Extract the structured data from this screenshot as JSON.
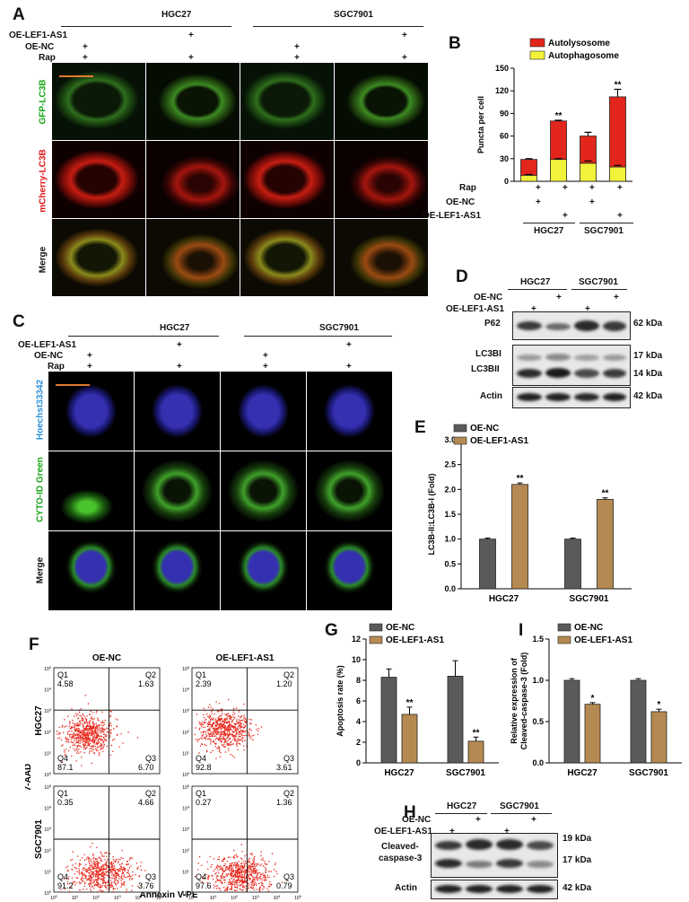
{
  "panels": {
    "A": "A",
    "B": "B",
    "C": "C",
    "D": "D",
    "E": "E",
    "F": "F",
    "G": "G",
    "H": "H",
    "I": "I"
  },
  "common": {
    "hgc27": "HGC27",
    "sgc7901": "SGC7901",
    "oe_lef1": "OE-LEF1-AS1",
    "oe_nc": "OE-NC",
    "rap": "Rap",
    "plus": "+"
  },
  "panelA": {
    "rows": [
      "GFP-LC3B",
      "mCherry-LC3B",
      "Merge"
    ]
  },
  "panelC": {
    "rows": [
      "Hoechst33342",
      "CYTO-ID Green",
      "Merge"
    ]
  },
  "panelD": {
    "proteins": [
      "P62",
      "LC3BI",
      "LC3BII",
      "Actin"
    ],
    "kda": [
      "62 kDa",
      "17 kDa",
      "14 kDa",
      "42 kDa"
    ]
  },
  "panelF": {
    "col_titles": [
      "OE-NC",
      "OE-LEF1-AS1"
    ],
    "row_labels": [
      "HGC27",
      "SGC7901"
    ],
    "xlabel": "Annexin V-PE",
    "ylabel": "7-AAD",
    "quadrant_names": [
      "Q1",
      "Q2",
      "Q3",
      "Q4"
    ],
    "plots": [
      {
        "q1": "4.58",
        "q2": "1.63",
        "q3": "6.70",
        "q4": "87.1"
      },
      {
        "q1": "2.39",
        "q2": "1.20",
        "q3": "3.61",
        "q4": "92.8"
      },
      {
        "q1": "0.35",
        "q2": "4.66",
        "q3": "3.76",
        "q4": "91.2"
      },
      {
        "q1": "0.27",
        "q2": "1.36",
        "q3": "0.79",
        "q4": "97.6"
      }
    ],
    "tick_exps": [
      "0",
      "1",
      "2",
      "3",
      "4",
      "5"
    ]
  },
  "panelH": {
    "proteins": [
      "Cleaved-",
      "caspase-3",
      "Actin"
    ],
    "kda": [
      "19 kDa",
      "17 kDa",
      "42 kDa"
    ]
  },
  "chart_data": [
    {
      "panel": "B",
      "type": "bar",
      "stacked": true,
      "categories": [
        "HGC27 OE-NC",
        "HGC27 OE-LEF1-AS1",
        "SGC7901 OE-NC",
        "SGC7901 OE-LEF1-AS1"
      ],
      "series": [
        {
          "name": "Autolysosome",
          "color": "#e2261c",
          "values": [
            21,
            51,
            36,
            93
          ],
          "errors": [
            1,
            1,
            5,
            10
          ]
        },
        {
          "name": "Autophagosome",
          "color": "#f2f23a",
          "values": [
            8,
            29,
            24,
            19
          ],
          "errors": [
            1,
            1,
            3,
            2
          ]
        }
      ],
      "ylabel": "Puncta per cell",
      "ylim": [
        0,
        150
      ],
      "yticks": [
        0,
        30,
        60,
        90,
        120,
        150
      ],
      "significance": [
        "",
        "**",
        "",
        "**"
      ],
      "legend": "top"
    },
    {
      "panel": "E",
      "type": "bar",
      "categories": [
        "HGC27",
        "SGC7901"
      ],
      "series": [
        {
          "name": "OE-NC",
          "color": "#5a5a5a",
          "values": [
            1.0,
            1.0
          ],
          "errors": [
            0.02,
            0.02
          ]
        },
        {
          "name": "OE-LEF1-AS1",
          "color": "#b58a52",
          "values": [
            2.1,
            1.8
          ],
          "errors": [
            0.03,
            0.03
          ]
        }
      ],
      "ylabel": "LC3B-II:LC3B-I (Fold)",
      "ylim": [
        0,
        3.0
      ],
      "yticks": [
        "0.0",
        "0.5",
        "1.0",
        "1.5",
        "2.0",
        "2.5",
        "3.0"
      ],
      "significance": [
        [
          "",
          "**"
        ],
        [
          "",
          "**"
        ]
      ],
      "legend": "top-left"
    },
    {
      "panel": "G",
      "type": "bar",
      "categories": [
        "HGC27",
        "SGC7901"
      ],
      "series": [
        {
          "name": "OE-NC",
          "color": "#5a5a5a",
          "values": [
            8.3,
            8.4
          ],
          "errors": [
            0.8,
            1.5
          ]
        },
        {
          "name": "OE-LEF1-AS1",
          "color": "#b58a52",
          "values": [
            4.7,
            2.1
          ],
          "errors": [
            0.7,
            0.4
          ]
        }
      ],
      "ylabel": "Apoptosis rate (%)",
      "ylim": [
        0,
        12
      ],
      "yticks": [
        "0",
        "2",
        "4",
        "6",
        "8",
        "10",
        "12"
      ],
      "significance": [
        [
          "",
          "**"
        ],
        [
          "",
          "**"
        ]
      ],
      "legend": "top-left"
    },
    {
      "panel": "I",
      "type": "bar",
      "categories": [
        "HGC27",
        "SGC7901"
      ],
      "series": [
        {
          "name": "OE-NC",
          "color": "#5a5a5a",
          "values": [
            1.0,
            1.0
          ],
          "errors": [
            0.02,
            0.02
          ]
        },
        {
          "name": "OE-LEF1-AS1",
          "color": "#b58a52",
          "values": [
            0.71,
            0.62
          ],
          "errors": [
            0.02,
            0.03
          ]
        }
      ],
      "ylabel": "Relative expression of Cleaved-caspase-3 (Fold)",
      "ylabel_lines": [
        "Relative expression of",
        "Cleaved-caspase-3 (Fold)"
      ],
      "ylim": [
        0,
        1.5
      ],
      "yticks": [
        "0.0",
        "0.5",
        "1.0",
        "1.5"
      ],
      "significance": [
        [
          "",
          "*"
        ],
        [
          "",
          "*"
        ]
      ],
      "legend": "top-left"
    }
  ]
}
